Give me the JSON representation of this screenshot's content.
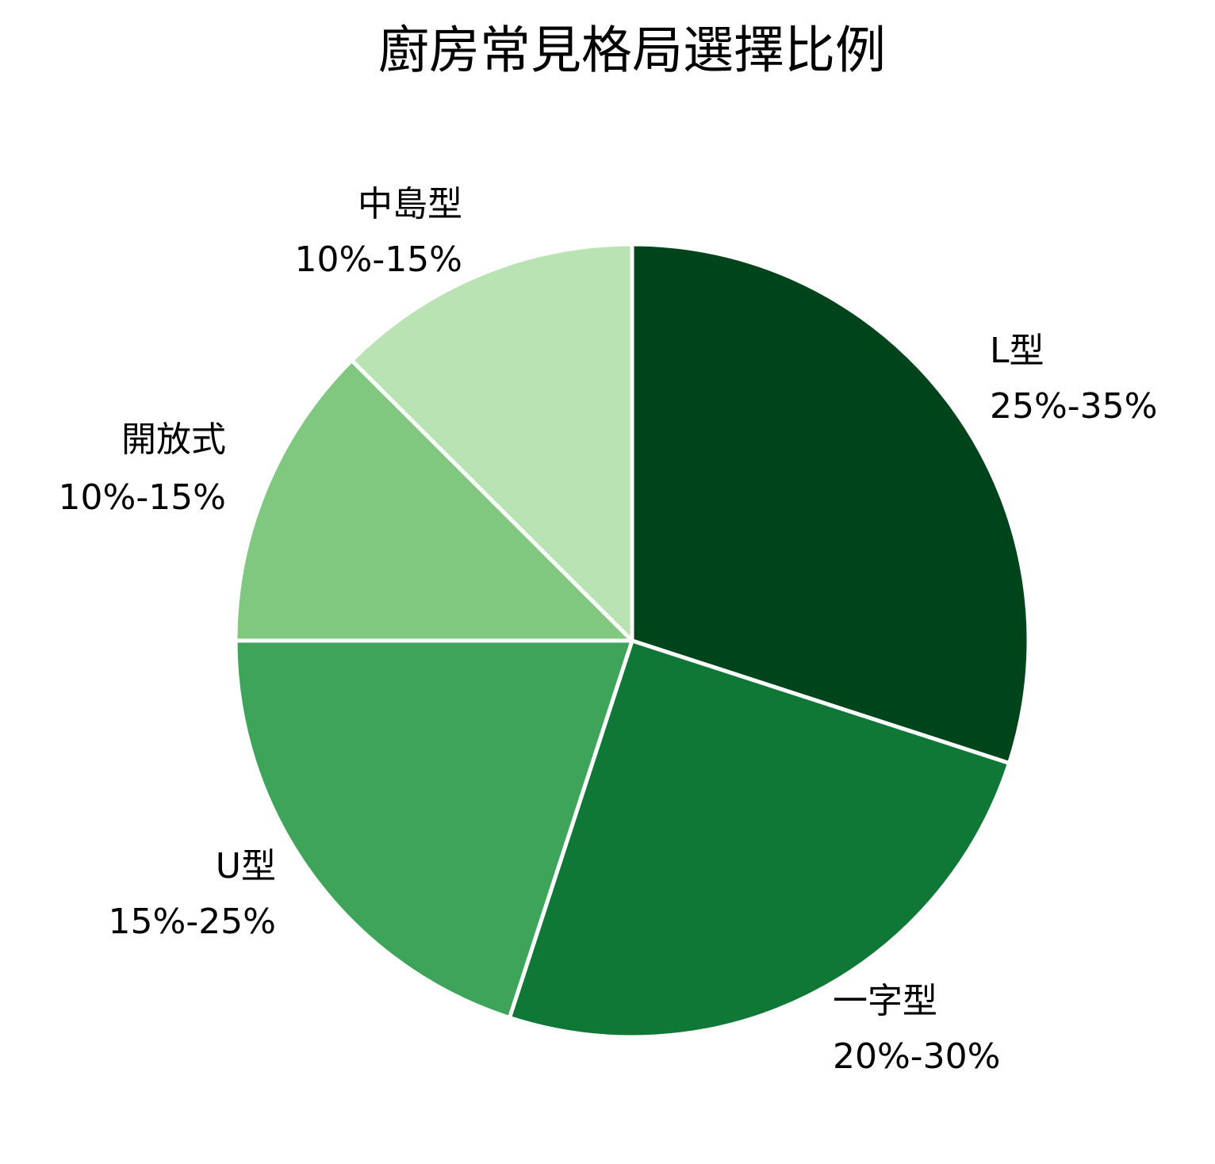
{
  "chart_data": {
    "type": "pie",
    "title": "廚房常見格局選擇比例",
    "categories": [
      "L型",
      "一字型",
      "U型",
      "開放式",
      "中島型"
    ],
    "values": [
      30,
      25,
      20,
      12.5,
      12.5
    ],
    "value_labels": [
      "25%-35%",
      "20%-30%",
      "15%-25%",
      "10%-15%",
      "10%-15%"
    ],
    "colors": [
      "#00441b",
      "#0f7837",
      "#3da45a",
      "#80c880",
      "#b9e3b3"
    ]
  }
}
